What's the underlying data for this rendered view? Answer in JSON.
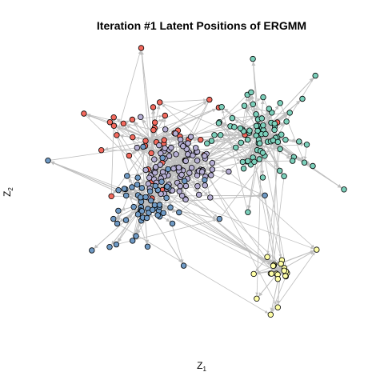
{
  "chart_data": {
    "type": "scatter",
    "subtype": "network-latent-positions",
    "title": "Iteration #1 Latent Positions of ERGMM",
    "xlabel": {
      "base": "Z",
      "sub": "1"
    },
    "ylabel": {
      "base": "Z",
      "sub": "2"
    },
    "axes_shown": false,
    "grid": false,
    "legend": "none",
    "edge_color": "#bebebe",
    "node_outline": "#000000",
    "groups": [
      {
        "color": "#f4695d",
        "n": 42
      },
      {
        "color": "#b6afd4",
        "n": 95
      },
      {
        "color": "#6f9ac5",
        "n": 65
      },
      {
        "color": "#7bd0bb",
        "n": 83
      },
      {
        "color": "#ffffa6",
        "n": 22
      }
    ]
  }
}
